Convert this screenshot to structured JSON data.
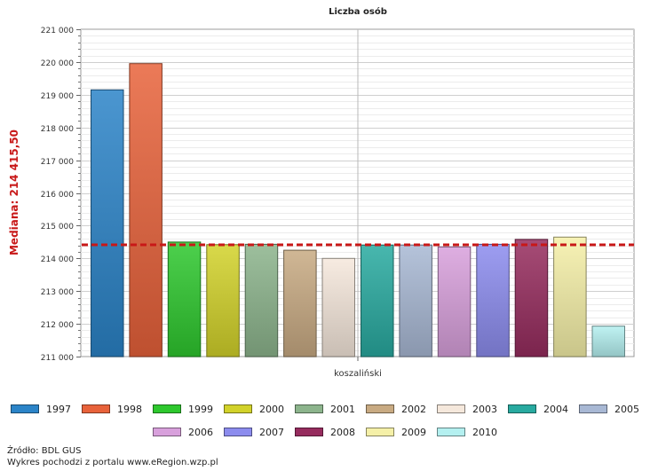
{
  "chart_data": {
    "type": "bar",
    "title": "Liczba osób",
    "category_label": "koszaliński",
    "ylim": [
      211000,
      221000
    ],
    "ytick_step": 1000,
    "median": {
      "label": "Mediana: 214 415,50",
      "value": 214415.5,
      "color": "#c81818"
    },
    "grid": true,
    "legend_position": "bottom",
    "series": [
      {
        "name": "1997",
        "value": 219150,
        "color": "#2b84c8"
      },
      {
        "name": "1998",
        "value": 219950,
        "color": "#e8623a"
      },
      {
        "name": "1999",
        "value": 214500,
        "color": "#2ec82e"
      },
      {
        "name": "2000",
        "value": 214420,
        "color": "#d2d22a"
      },
      {
        "name": "2001",
        "value": 214430,
        "color": "#8cb48c"
      },
      {
        "name": "2002",
        "value": 214250,
        "color": "#c8aa82"
      },
      {
        "name": "2003",
        "value": 214000,
        "color": "#f5e8dc"
      },
      {
        "name": "2004",
        "value": 214410,
        "color": "#28aaa0"
      },
      {
        "name": "2005",
        "value": 214410,
        "color": "#a8b8d4"
      },
      {
        "name": "2006",
        "value": 214350,
        "color": "#d8a0dc"
      },
      {
        "name": "2007",
        "value": 214430,
        "color": "#8c8cee"
      },
      {
        "name": "2008",
        "value": 214580,
        "color": "#962c5e"
      },
      {
        "name": "2009",
        "value": 214650,
        "color": "#f5f0a8"
      },
      {
        "name": "2010",
        "value": 211930,
        "color": "#b4f0f0"
      }
    ]
  },
  "footer": {
    "source": "Źródło: BDL GUS",
    "portal": "Wykres pochodzi z portalu www.eRegion.wzp.pl"
  }
}
